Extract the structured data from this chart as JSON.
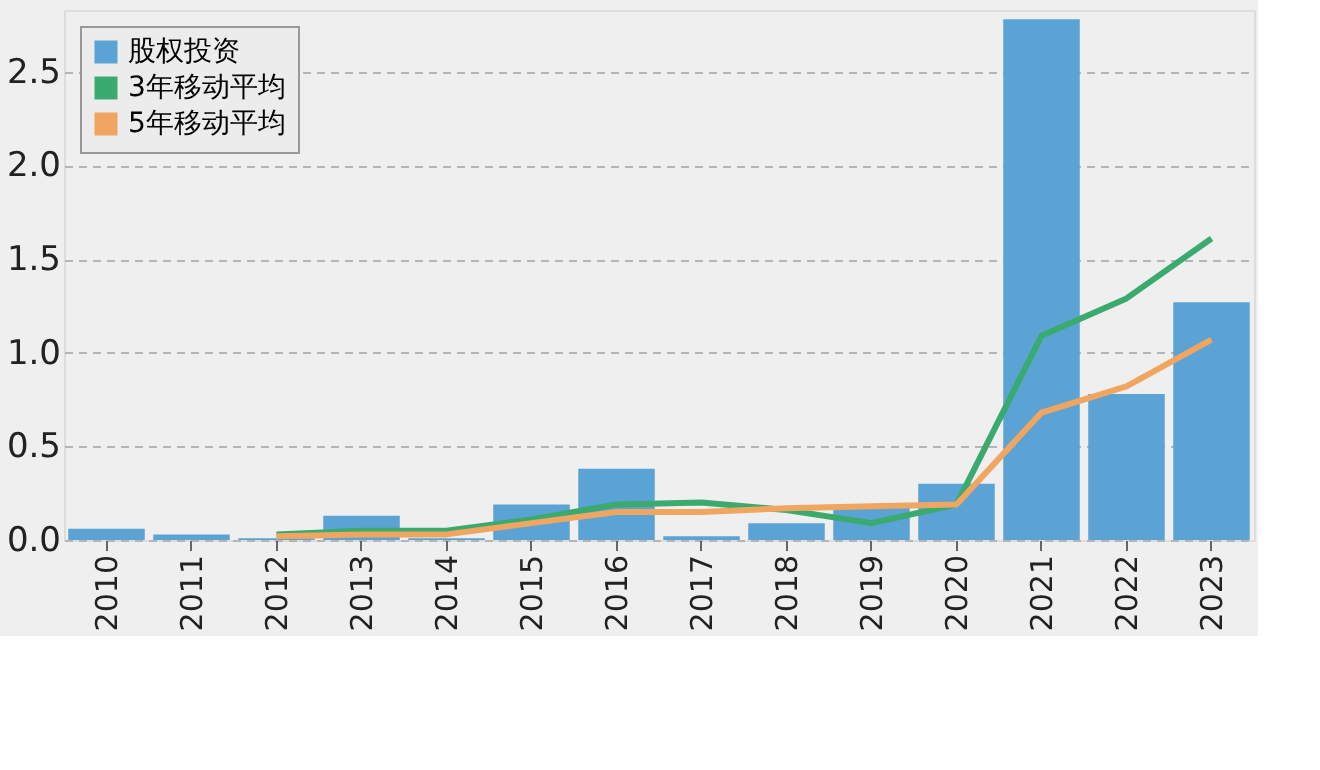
{
  "chart_data": {
    "type": "bar",
    "categories": [
      "2010",
      "2011",
      "2012",
      "2013",
      "2014",
      "2015",
      "2016",
      "2017",
      "2018",
      "2019",
      "2020",
      "2021",
      "2022",
      "2023"
    ],
    "series": [
      {
        "name": "股权投资",
        "color": "#5ba3d4",
        "values": [
          0.06,
          0.03,
          0.01,
          0.13,
          0.01,
          0.19,
          0.38,
          0.02,
          0.09,
          0.18,
          0.3,
          2.78,
          0.78,
          1.27
        ]
      },
      {
        "name": "3年移动平均",
        "type": "line",
        "color": "#3aaa6e",
        "values": [
          null,
          null,
          0.03,
          0.05,
          0.05,
          0.11,
          0.19,
          0.2,
          0.16,
          0.09,
          0.19,
          1.09,
          1.29,
          1.61
        ]
      },
      {
        "name": "5年移动平均",
        "type": "line",
        "color": "#f0a560",
        "values": [
          null,
          null,
          0.02,
          0.03,
          0.03,
          0.09,
          0.15,
          0.15,
          0.17,
          0.18,
          0.19,
          0.68,
          0.82,
          1.07
        ]
      }
    ],
    "ylim": [
      0,
      2.83
    ],
    "yticks": [
      {
        "value": 0,
        "label": "0.0"
      },
      {
        "value": 0.5,
        "label": "0.5"
      },
      {
        "value": 1,
        "label": "1.0"
      },
      {
        "value": 1.5,
        "label": "1.5"
      },
      {
        "value": 2,
        "label": "2.0"
      },
      {
        "value": 2.5,
        "label": "2.5"
      }
    ],
    "grid": "y",
    "legend": "top left",
    "line_style": "solid"
  }
}
